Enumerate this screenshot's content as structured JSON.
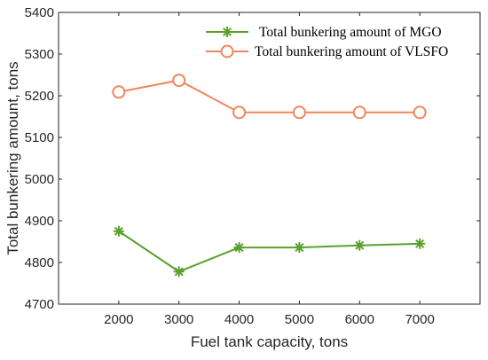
{
  "chart_data": {
    "type": "line",
    "x": [
      2000,
      3000,
      4000,
      5000,
      6000,
      7000
    ],
    "x_ticks": [
      "2000",
      "3000",
      "4000",
      "5000",
      "6000",
      "7000"
    ],
    "xlim": [
      1000,
      8000
    ],
    "y_ticks": [
      "4700",
      "4800",
      "4900",
      "5000",
      "5100",
      "5200",
      "5300",
      "5400"
    ],
    "ylim": [
      4700,
      5400
    ],
    "xlabel": "Fuel tank capacity, tons",
    "ylabel": "Total bunkering amount, tons",
    "grid": false,
    "legend_position": "top-right",
    "series": [
      {
        "name": "Total bunkering amount of MGO",
        "values": [
          4875,
          4778,
          4836,
          4836,
          4841,
          4845
        ],
        "color": "#5aa02c",
        "marker": "asterisk"
      },
      {
        "name": "Total bunkering amount of VLSFO",
        "values": [
          5209,
          5237,
          5160,
          5160,
          5160,
          5160
        ],
        "color": "#f0875a",
        "marker": "circle"
      }
    ]
  }
}
